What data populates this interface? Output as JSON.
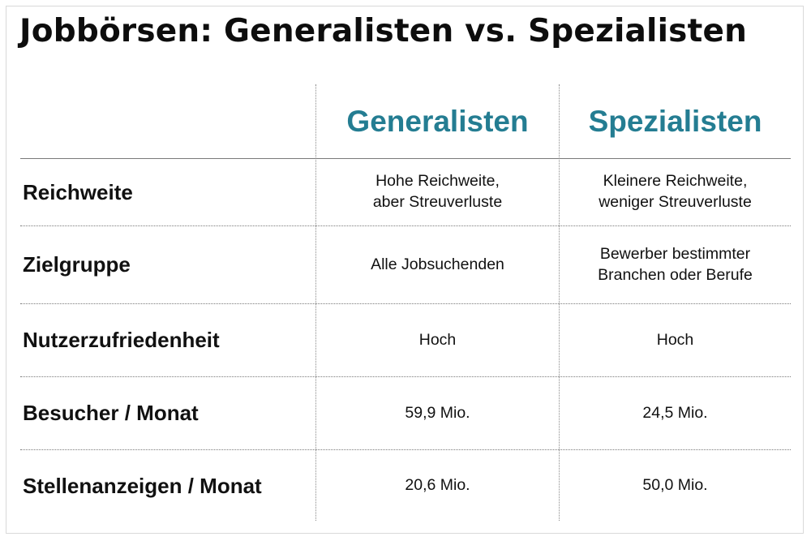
{
  "title": "Jobbörsen: Generalisten vs. Spezialisten",
  "columns": [
    "Generalisten",
    "Spezialisten"
  ],
  "rows": [
    {
      "label": "Reichweite",
      "values": [
        "Hohe Reichweite,\naber Streuverluste",
        "Kleinere Reichweite,\nweniger Streuverluste"
      ]
    },
    {
      "label": "Zielgruppe",
      "values": [
        "Alle Jobsuchenden",
        "Bewerber bestimmter\nBranchen oder Berufe"
      ]
    },
    {
      "label": "Nutzerzufriedenheit",
      "values": [
        "Hoch",
        "Hoch"
      ]
    },
    {
      "label": "Besucher / Monat",
      "values": [
        "59,9 Mio.",
        "24,5 Mio."
      ]
    },
    {
      "label": "Stellenanzeigen / Monat",
      "values": [
        "20,6 Mio.",
        "50,0 Mio."
      ]
    }
  ],
  "colors": {
    "header_accent": "#247d92",
    "text": "#111111",
    "rule": "#7a7a7a",
    "frame_border": "#d9d9d9"
  }
}
